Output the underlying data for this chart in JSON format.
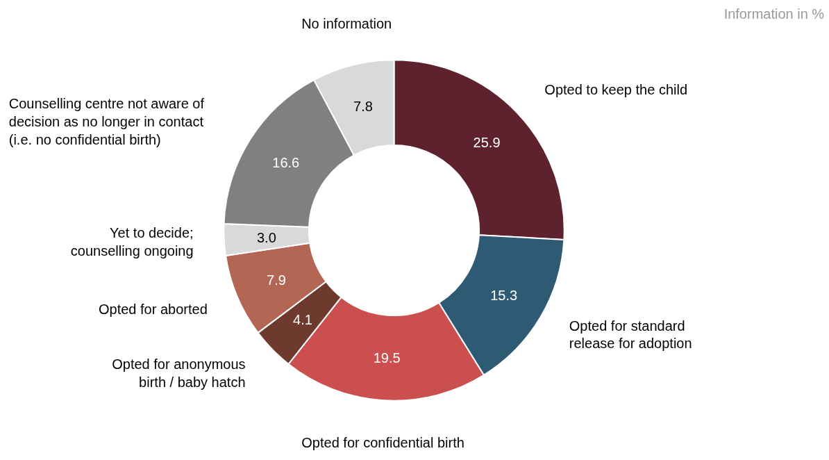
{
  "chart_data": {
    "type": "donut",
    "categories": [
      "Opted to keep the child",
      "Opted for standard\nrelease for adoption",
      "Opted for confidential birth",
      "Opted for anonymous\nbirth / baby hatch",
      "Opted for aborted",
      "Yet to decide;\ncounselling ongoing",
      "Counselling centre not aware of\ndecision as no longer in contact\n(i.e. no confidential birth)",
      "No information"
    ],
    "values": [
      25.9,
      15.3,
      19.5,
      4.1,
      7.9,
      3.0,
      16.6,
      7.8
    ],
    "colors": [
      "#5e222e",
      "#2f5a73",
      "#cb4f4e",
      "#6e3a2e",
      "#b46655",
      "#d9d9d9",
      "#808080",
      "#d9d9d9"
    ],
    "value_labels": [
      "25.9",
      "15.3",
      "19.5",
      "4.1",
      "7.9",
      "3.0",
      "16.6",
      "7.8"
    ],
    "annotations": [
      "Information in %"
    ]
  }
}
